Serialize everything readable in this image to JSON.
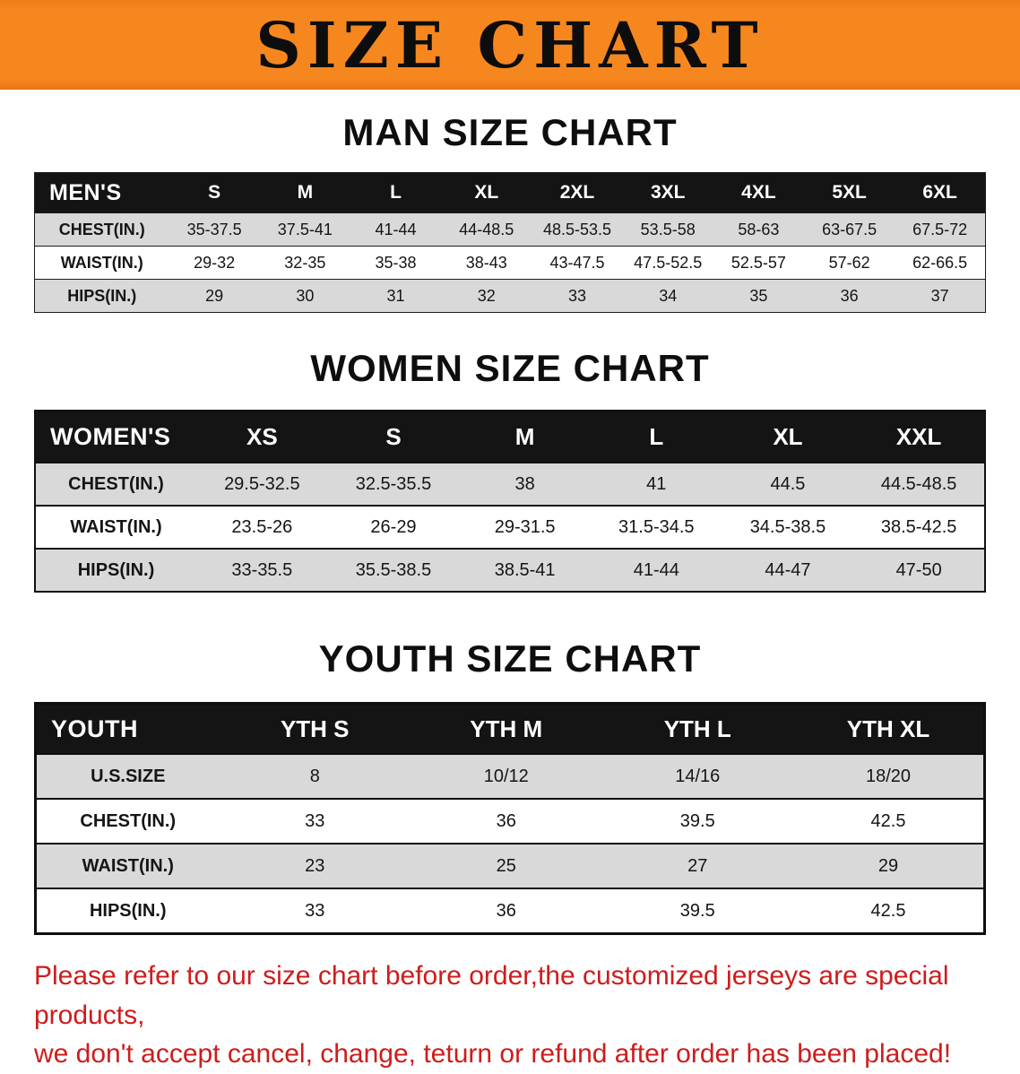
{
  "banner": {
    "title": "SIZE CHART",
    "bg_color": "#f6871f",
    "text_color": "#0d0d0d"
  },
  "sections": [
    {
      "heading": "MAN SIZE CHART",
      "corner": "MEN'S",
      "columns": [
        "S",
        "M",
        "L",
        "XL",
        "2XL",
        "3XL",
        "4XL",
        "5XL",
        "6XL"
      ],
      "rows": [
        {
          "label": "CHEST(IN.)",
          "values": [
            "35-37.5",
            "37.5-41",
            "41-44",
            "44-48.5",
            "48.5-53.5",
            "53.5-58",
            "58-63",
            "63-67.5",
            "67.5-72"
          ]
        },
        {
          "label": "WAIST(IN.)",
          "values": [
            "29-32",
            "32-35",
            "35-38",
            "38-43",
            "43-47.5",
            "47.5-52.5",
            "52.5-57",
            "57-62",
            "62-66.5"
          ]
        },
        {
          "label": "HIPS(IN.)",
          "values": [
            "29",
            "30",
            "31",
            "32",
            "33",
            "34",
            "35",
            "36",
            "37"
          ]
        }
      ]
    },
    {
      "heading": "WOMEN SIZE CHART",
      "corner": "WOMEN'S",
      "columns": [
        "XS",
        "S",
        "M",
        "L",
        "XL",
        "XXL"
      ],
      "rows": [
        {
          "label": "CHEST(IN.)",
          "values": [
            "29.5-32.5",
            "32.5-35.5",
            "38",
            "41",
            "44.5",
            "44.5-48.5"
          ]
        },
        {
          "label": "WAIST(IN.)",
          "values": [
            "23.5-26",
            "26-29",
            "29-31.5",
            "31.5-34.5",
            "34.5-38.5",
            "38.5-42.5"
          ]
        },
        {
          "label": "HIPS(IN.)",
          "values": [
            "33-35.5",
            "35.5-38.5",
            "38.5-41",
            "41-44",
            "44-47",
            "47-50"
          ]
        }
      ]
    },
    {
      "heading": "YOUTH SIZE CHART",
      "corner": "YOUTH",
      "columns": [
        "YTH S",
        "YTH M",
        "YTH L",
        "YTH XL"
      ],
      "rows": [
        {
          "label": "U.S.SIZE",
          "values": [
            "8",
            "10/12",
            "14/16",
            "18/20"
          ]
        },
        {
          "label": "CHEST(IN.)",
          "values": [
            "33",
            "36",
            "39.5",
            "42.5"
          ]
        },
        {
          "label": "WAIST(IN.)",
          "values": [
            "23",
            "25",
            "27",
            "29"
          ]
        },
        {
          "label": "HIPS(IN.)",
          "values": [
            "33",
            "36",
            "39.5",
            "42.5"
          ]
        }
      ]
    }
  ],
  "footer": {
    "line1": "Please refer to our size chart before order,the customized jerseys are special products,",
    "line2": "we don't accept cancel, change, teturn or refund after order has been placed!",
    "text_color": "#ce1c1c"
  }
}
